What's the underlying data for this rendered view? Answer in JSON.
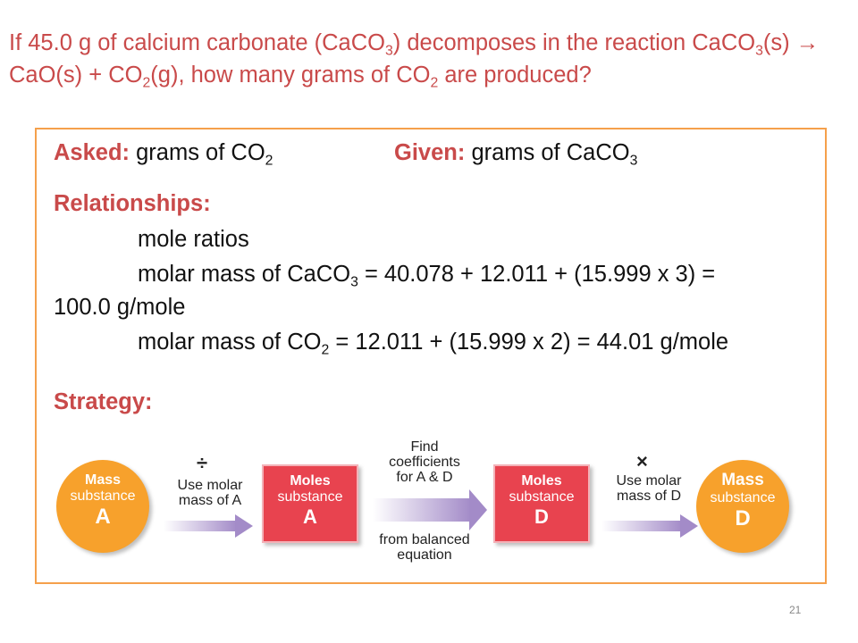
{
  "question": {
    "p1": "If 45.0 g of calcium carbonate (CaCO",
    "s1": "3",
    "p2": ") decomposes in the reaction CaCO",
    "s2": "3",
    "p3": "(s)  →  CaO(s) + CO",
    "s3": "2",
    "p4": "(g), how many grams of CO",
    "s4": "2",
    "p5": " are produced?"
  },
  "asked": {
    "label": "Asked:",
    "text": " grams of CO",
    "sub": "2"
  },
  "given": {
    "label": "Given:",
    "text": " grams of CaCO",
    "sub": "3"
  },
  "relationships": {
    "label": "Relationships:",
    "line1": "mole ratios",
    "line2a": "molar mass of CaCO",
    "line2sub": "3",
    "line2b": " = 40.078 + 12.011 + (15.999 x 3) =",
    "line3": "100.0 g/mole",
    "line4a": "molar mass of CO",
    "line4sub": "2",
    "line4b": " = 12.011 + (15.999 x 2) = 44.01 g/mole"
  },
  "strategy": {
    "label": "Strategy:"
  },
  "diagram": {
    "node1": {
      "top": "Mass",
      "mid": "substance",
      "bottom": "A"
    },
    "node2": {
      "top": "Moles",
      "mid": "substance",
      "bottom": "A"
    },
    "node3": {
      "top": "Moles",
      "mid": "substance",
      "bottom": "D"
    },
    "node4": {
      "top": "Mass",
      "mid": "substance",
      "bottom": "D"
    },
    "arrow1": {
      "symbol": "÷",
      "line1": "Use molar",
      "line2": "mass of A"
    },
    "arrow2": {
      "top1": "Find",
      "top2": "coefficients",
      "top3": "for A & D",
      "bottom1": "from balanced",
      "bottom2": "equation"
    },
    "arrow3": {
      "symbol": "×",
      "line1": "Use molar",
      "line2": "mass of D"
    }
  },
  "page_number": "21"
}
